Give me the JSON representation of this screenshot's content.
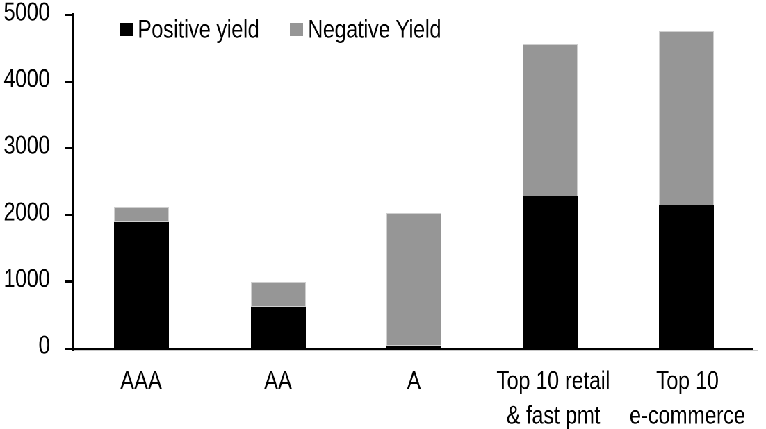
{
  "chart_data": {
    "type": "bar",
    "stacked": true,
    "title": "",
    "xlabel": "",
    "ylabel": "",
    "categories": [
      "AAA",
      "AA",
      "A",
      "Top 10 retail\n& fast pmt",
      "Top 10\ne-commerce"
    ],
    "series": [
      {
        "name": "Positive yield",
        "color": "#000000",
        "values": [
          1890,
          620,
          40,
          2280,
          2145
        ]
      },
      {
        "name": "Negative Yield",
        "color": "#969696",
        "values": [
          230,
          380,
          1985,
          2280,
          2610
        ]
      }
    ],
    "totals": [
      2120,
      1000,
      2025,
      4560,
      4755
    ],
    "ylim": [
      0,
      5000
    ],
    "yticks": [
      0,
      1000,
      2000,
      3000,
      4000,
      5000
    ],
    "grid": false,
    "legend_position": "top-left",
    "background_color": "#ffffff",
    "axis_color": "#000000"
  }
}
